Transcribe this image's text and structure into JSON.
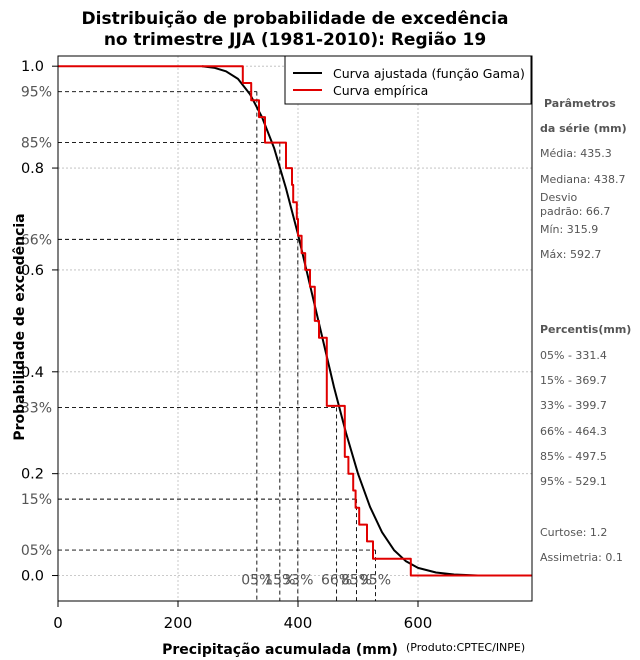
{
  "chart_data": {
    "type": "line",
    "title_line1": "Distribuição de probabilidade de excedência",
    "title_line2": "no trimestre JJA (1981-2010): Região 19",
    "xlabel": "Precipitação acumulada (mm)",
    "ylabel": "Probabilidade de excedência",
    "credit": "(Produto:CPTEC/INPE)",
    "xlim": [
      0,
      790
    ],
    "ylim": [
      -0.05,
      1.02
    ],
    "xticks": [
      0,
      200,
      400,
      600
    ],
    "xtick_labels": [
      "0",
      "200",
      "400",
      "600"
    ],
    "yticks": [
      0.0,
      0.2,
      0.4,
      0.6,
      0.8,
      1.0
    ],
    "ytick_labels": [
      "0.0",
      "0.2",
      "0.4",
      "0.6",
      "0.8",
      "1.0"
    ],
    "grid": true,
    "legend_position": "top-right",
    "colors": {
      "fitted": "#000000",
      "empirical": "#e00000",
      "grid": "#bbbbbb",
      "text": "#555555"
    },
    "series": [
      {
        "name": "Curva ajustada (função Gama)",
        "type": "line",
        "x": [
          240,
          260,
          280,
          300,
          320,
          340,
          360,
          380,
          400,
          420,
          440,
          460,
          480,
          500,
          520,
          540,
          560,
          580,
          600,
          630,
          660,
          700
        ],
        "y": [
          1.0,
          0.997,
          0.99,
          0.975,
          0.945,
          0.9,
          0.84,
          0.76,
          0.67,
          0.57,
          0.47,
          0.37,
          0.28,
          0.2,
          0.135,
          0.085,
          0.05,
          0.028,
          0.015,
          0.006,
          0.002,
          0.0
        ]
      },
      {
        "name": "Curva empírica",
        "type": "step",
        "x": [
          0,
          308,
          308,
          322,
          322,
          335,
          335,
          345,
          345,
          380,
          380,
          390,
          390,
          392,
          392,
          398,
          398,
          400,
          400,
          406,
          406,
          412,
          412,
          420,
          420,
          428,
          428,
          435,
          435,
          448,
          448,
          455,
          455,
          478,
          478,
          484,
          484,
          492,
          492,
          496,
          496,
          502,
          502,
          515,
          515,
          525,
          525,
          548,
          548,
          588,
          588,
          790
        ],
        "y": [
          1.0,
          1.0,
          0.967,
          0.967,
          0.933,
          0.933,
          0.9,
          0.9,
          0.85,
          0.85,
          0.8,
          0.8,
          0.767,
          0.767,
          0.733,
          0.733,
          0.7,
          0.7,
          0.667,
          0.667,
          0.633,
          0.633,
          0.6,
          0.6,
          0.567,
          0.567,
          0.5,
          0.5,
          0.467,
          0.467,
          0.333,
          0.333,
          0.333,
          0.333,
          0.233,
          0.233,
          0.2,
          0.2,
          0.167,
          0.167,
          0.133,
          0.133,
          0.1,
          0.1,
          0.067,
          0.067,
          0.033,
          0.033,
          0.033,
          0.033,
          0.0,
          0.0
        ]
      }
    ],
    "percentile_lines": [
      {
        "label": "95%",
        "prob": 0.95,
        "x": 331.4
      },
      {
        "label": "85%",
        "prob": 0.85,
        "x": 369.7
      },
      {
        "label": "66%",
        "prob": 0.66,
        "x": 399.7
      },
      {
        "label": "33%",
        "prob": 0.33,
        "x": 464.3
      },
      {
        "label": "15%",
        "prob": 0.15,
        "x": 497.5
      },
      {
        "label": "05%",
        "prob": 0.05,
        "x": 529.1
      }
    ],
    "bottom_percentile_labels": [
      {
        "label": "05%",
        "x": 331.4
      },
      {
        "label": "15%",
        "x": 369.7
      },
      {
        "label": "33%",
        "x": 399.7
      },
      {
        "label": "66%",
        "x": 464.3
      },
      {
        "label": "85%",
        "x": 497.5
      },
      {
        "label": "95%",
        "x": 529.1
      }
    ]
  },
  "side_panel": {
    "params_title1": "Parâmetros",
    "params_title2": "da série (mm)",
    "media": "Média: 435.3",
    "mediana": "Mediana: 438.7",
    "desvio1": "Desvio",
    "desvio2": "padrão: 66.7",
    "min": "Mín: 315.9",
    "max": "Máx: 592.7",
    "percentis_title": "Percentis(mm)",
    "p05": "05% - 331.4",
    "p15": "15% - 369.7",
    "p33": "33% - 399.7",
    "p66": "66% - 464.3",
    "p85": "85% - 497.5",
    "p95": "95% - 529.1",
    "curtose": "Curtose: 1.2",
    "assimetria": "Assimetria: 0.1"
  }
}
